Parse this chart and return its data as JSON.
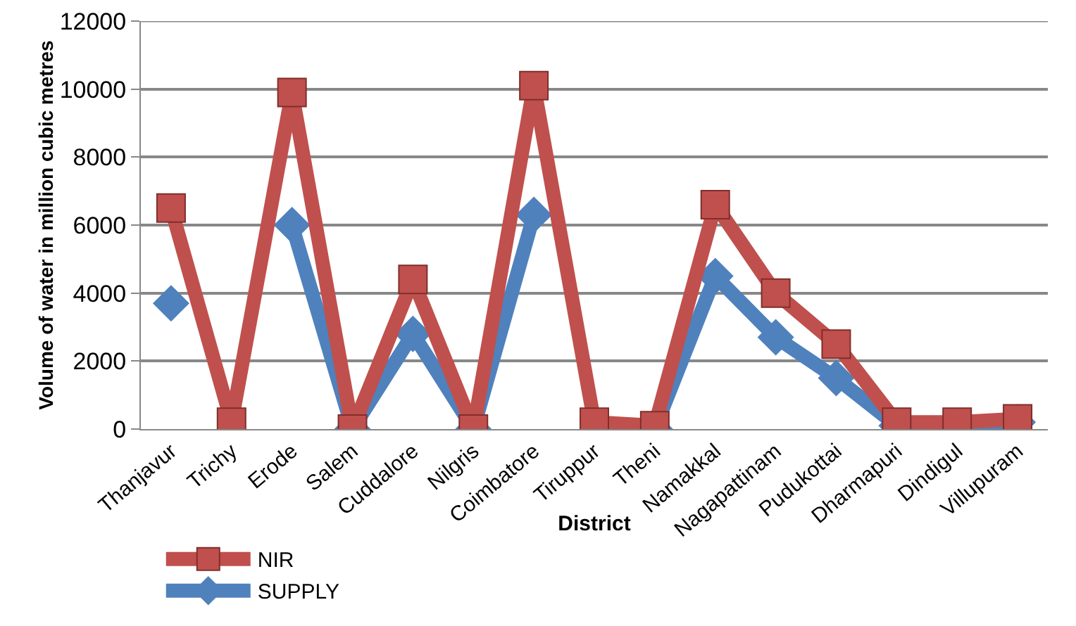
{
  "chart_data": {
    "type": "line",
    "xlabel": "District",
    "ylabel": "Volume of water in million cubic metres",
    "categories": [
      "Thanjavur",
      "Trichy",
      "Erode",
      "Salem",
      "Cuddalore",
      "Nilgris",
      "Coimbatore",
      "Tiruppur",
      "Theni",
      "Namakkal",
      "Nagapattinam",
      "Pudukottai",
      "Dharmapuri",
      "Dindigul",
      "Villupuram"
    ],
    "series": [
      {
        "name": "NIR",
        "color": "#c0504d",
        "marker": "square",
        "values": [
          6500,
          200,
          9900,
          0,
          4400,
          0,
          10100,
          200,
          100,
          6600,
          4000,
          2500,
          200,
          200,
          300
        ]
      },
      {
        "name": "SUPPLY",
        "color": "#4f81bd",
        "marker": "diamond",
        "values": [
          3700,
          null,
          6000,
          0,
          2800,
          0,
          6300,
          null,
          0,
          4500,
          2700,
          1500,
          100,
          100,
          200
        ]
      }
    ],
    "ylim": [
      0,
      12000
    ],
    "yticks": [
      0,
      2000,
      4000,
      6000,
      8000,
      10000,
      12000
    ],
    "grid": "y",
    "legend": "bottom left",
    "line_style": "solid"
  }
}
